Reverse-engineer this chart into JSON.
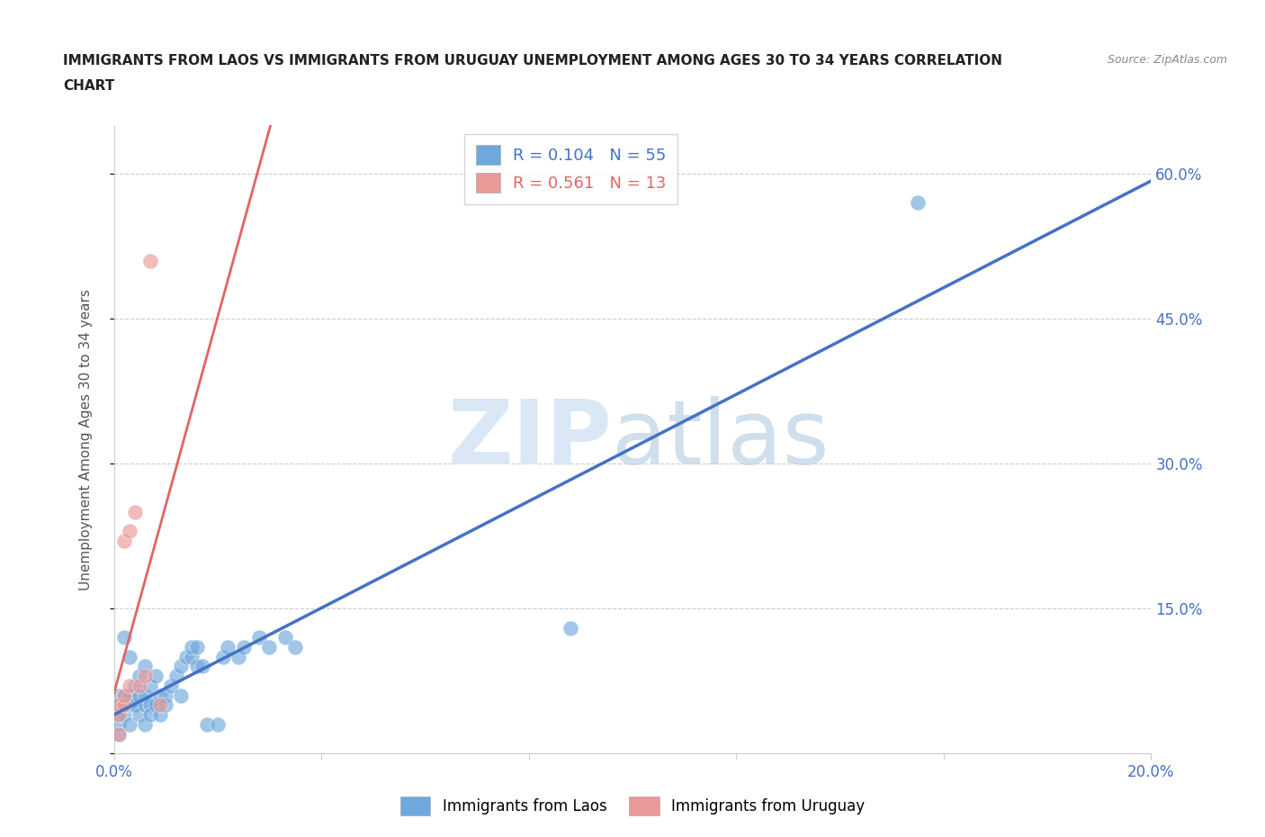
{
  "title_line1": "IMMIGRANTS FROM LAOS VS IMMIGRANTS FROM URUGUAY UNEMPLOYMENT AMONG AGES 30 TO 34 YEARS CORRELATION",
  "title_line2": "CHART",
  "source": "Source: ZipAtlas.com",
  "ylabel": "Unemployment Among Ages 30 to 34 years",
  "xlim": [
    0.0,
    0.2
  ],
  "ylim": [
    0.0,
    0.65
  ],
  "R_laos": 0.104,
  "N_laos": 55,
  "R_uruguay": 0.561,
  "N_uruguay": 13,
  "color_laos": "#6fa8dc",
  "color_uruguay": "#ea9999",
  "color_laos_line": "#4472c4",
  "color_uruguay_line": "#e06666",
  "watermark_color": "#dae8f5",
  "laos_x": [
    0.001,
    0.001,
    0.001,
    0.001,
    0.001,
    0.002,
    0.002,
    0.002,
    0.002,
    0.003,
    0.003,
    0.003,
    0.003,
    0.003,
    0.004,
    0.004,
    0.004,
    0.005,
    0.005,
    0.005,
    0.006,
    0.006,
    0.006,
    0.006,
    0.007,
    0.007,
    0.007,
    0.008,
    0.008,
    0.009,
    0.009,
    0.01,
    0.01,
    0.011,
    0.012,
    0.013,
    0.013,
    0.014,
    0.015,
    0.015,
    0.016,
    0.016,
    0.017,
    0.018,
    0.02,
    0.021,
    0.022,
    0.024,
    0.025,
    0.028,
    0.03,
    0.033,
    0.035,
    0.088,
    0.155
  ],
  "laos_y": [
    0.02,
    0.03,
    0.04,
    0.05,
    0.06,
    0.04,
    0.05,
    0.06,
    0.12,
    0.03,
    0.05,
    0.06,
    0.06,
    0.1,
    0.05,
    0.05,
    0.07,
    0.04,
    0.06,
    0.08,
    0.05,
    0.06,
    0.09,
    0.03,
    0.05,
    0.07,
    0.04,
    0.05,
    0.08,
    0.06,
    0.04,
    0.06,
    0.05,
    0.07,
    0.08,
    0.06,
    0.09,
    0.1,
    0.1,
    0.11,
    0.09,
    0.11,
    0.09,
    0.03,
    0.03,
    0.1,
    0.11,
    0.1,
    0.11,
    0.12,
    0.11,
    0.12,
    0.11,
    0.13,
    0.57
  ],
  "uruguay_x": [
    0.001,
    0.001,
    0.001,
    0.002,
    0.002,
    0.002,
    0.003,
    0.003,
    0.004,
    0.005,
    0.006,
    0.007,
    0.009
  ],
  "uruguay_y": [
    0.02,
    0.04,
    0.05,
    0.05,
    0.06,
    0.22,
    0.07,
    0.23,
    0.25,
    0.07,
    0.08,
    0.51,
    0.05
  ],
  "background_color": "#ffffff",
  "grid_color": "#cccccc"
}
